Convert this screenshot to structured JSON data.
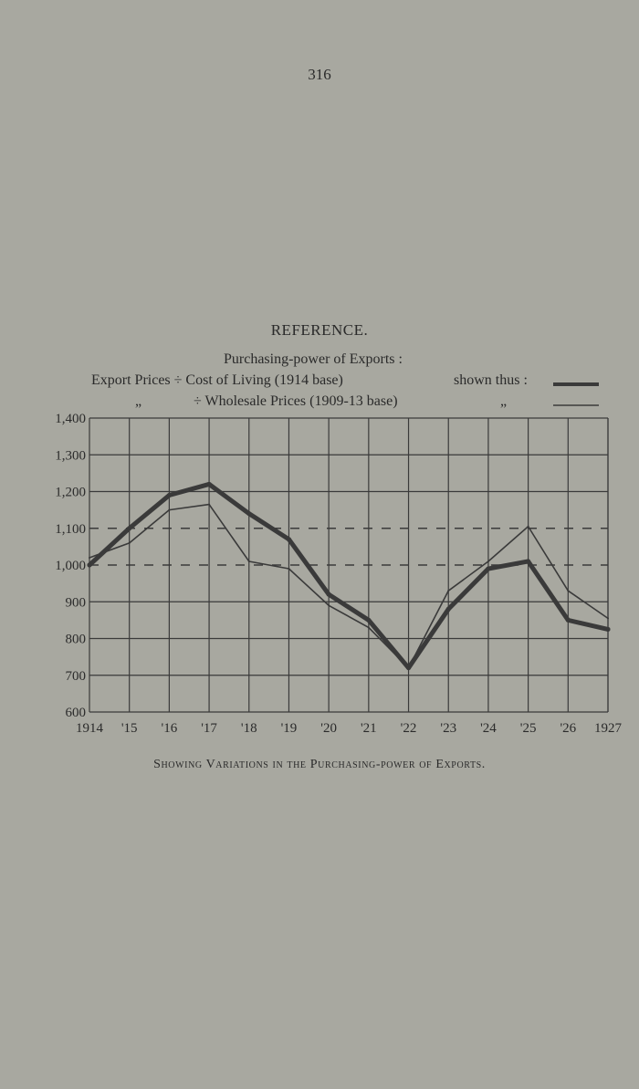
{
  "page_number": "316",
  "heading": "REFERENCE.",
  "legend": {
    "title": "Purchasing-power of Exports :",
    "row1_label": "Export Prices ÷ Cost of Living (1914 base)",
    "row1_note": "shown thus :",
    "row2_ditto": "„",
    "row2_label": "÷ Wholesale Prices (1909-13 base)",
    "row2_note": "„"
  },
  "caption": "Showing Variations in the Purchasing-power of Exports.",
  "chart_data": {
    "type": "line",
    "x": [
      "1914",
      "'15",
      "'16",
      "'17",
      "'18",
      "'19",
      "'20",
      "'21",
      "'22",
      "'23",
      "'24",
      "'25",
      "'26",
      "1927"
    ],
    "y_ticks": [
      "600",
      "700",
      "800",
      "900",
      "1,000",
      "1,100",
      "1,200",
      "1,300",
      "1,400"
    ],
    "ylim": [
      600,
      1400
    ],
    "reference_lines": [
      1000,
      1100
    ],
    "grid": true,
    "series": [
      {
        "name": "Export Prices ÷ Cost of Living (1914 base)",
        "style": "thick",
        "color": "#3a3a3a",
        "values": [
          1000,
          1100,
          1190,
          1220,
          1140,
          1070,
          920,
          850,
          720,
          880,
          990,
          1010,
          850,
          825
        ]
      },
      {
        "name": "Export Prices ÷ Wholesale Prices (1909-13 base)",
        "style": "thin",
        "color": "#3a3a3a",
        "values": [
          1020,
          1060,
          1150,
          1165,
          1010,
          990,
          890,
          830,
          720,
          930,
          1010,
          1105,
          930,
          855
        ]
      }
    ]
  }
}
